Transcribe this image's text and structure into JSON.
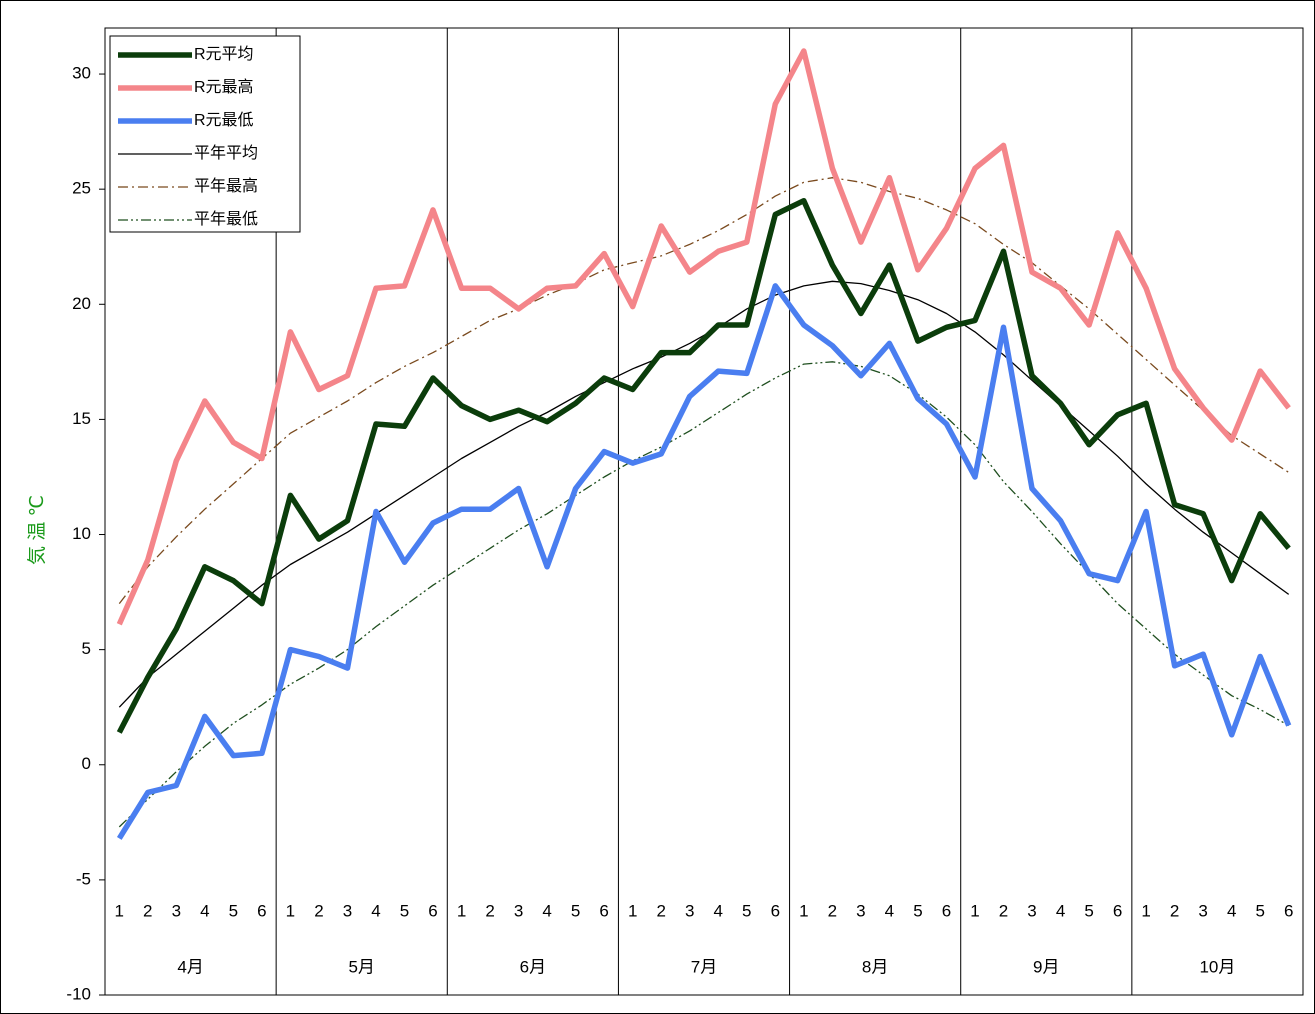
{
  "chart_data": {
    "type": "line",
    "y_label": "気 温 ℃",
    "categories": [
      "1",
      "2",
      "3",
      "4",
      "5",
      "6",
      "1",
      "2",
      "3",
      "4",
      "5",
      "6",
      "1",
      "2",
      "3",
      "4",
      "5",
      "6",
      "1",
      "2",
      "3",
      "4",
      "5",
      "6",
      "1",
      "2",
      "3",
      "4",
      "5",
      "6",
      "1",
      "2",
      "3",
      "4",
      "5",
      "6",
      "1",
      "2",
      "3",
      "4",
      "5",
      "6"
    ],
    "months": [
      "4月",
      "5月",
      "6月",
      "7月",
      "8月",
      "9月",
      "10月"
    ],
    "ylim": [
      -10,
      32
    ],
    "yticks": [
      -10,
      -5,
      0,
      5,
      10,
      15,
      20,
      25,
      30
    ],
    "legend": "top-left",
    "series": [
      {
        "name": "R元平均",
        "color": "#0b3d0b",
        "style": "bold",
        "values": [
          1.4,
          3.8,
          5.9,
          8.6,
          8.0,
          7.0,
          11.7,
          9.8,
          10.6,
          14.8,
          14.7,
          16.8,
          15.6,
          15.0,
          15.4,
          14.9,
          15.7,
          16.8,
          16.3,
          17.9,
          17.9,
          19.1,
          19.1,
          23.9,
          24.5,
          21.7,
          19.6,
          21.7,
          18.4,
          19.0,
          19.3,
          22.3,
          16.9,
          15.7,
          13.9,
          15.2,
          15.7,
          11.3,
          10.9,
          8.0,
          10.9,
          9.4
        ]
      },
      {
        "name": "R元最高",
        "color": "#f4858a",
        "style": "bold",
        "values": [
          6.1,
          8.9,
          13.2,
          15.8,
          14.0,
          13.3,
          18.8,
          16.3,
          16.9,
          20.7,
          20.8,
          24.1,
          20.7,
          20.7,
          19.8,
          20.7,
          20.8,
          22.2,
          19.9,
          23.4,
          21.4,
          22.3,
          22.7,
          28.7,
          31.0,
          25.9,
          22.7,
          25.5,
          21.5,
          23.3,
          25.9,
          26.9,
          21.4,
          20.7,
          19.1,
          23.1,
          20.7,
          17.2,
          15.5,
          14.1,
          17.1,
          15.5
        ]
      },
      {
        "name": "R元最低",
        "color": "#4a7ef0",
        "style": "bold",
        "values": [
          -3.2,
          -1.2,
          -0.9,
          2.1,
          0.4,
          0.5,
          5.0,
          4.7,
          4.2,
          11.0,
          8.8,
          10.5,
          11.1,
          11.1,
          12.0,
          8.6,
          12.0,
          13.6,
          13.1,
          13.5,
          16.0,
          17.1,
          17.0,
          20.8,
          19.1,
          18.2,
          16.9,
          18.3,
          15.9,
          14.8,
          12.5,
          19.0,
          12.0,
          10.6,
          8.3,
          8.0,
          11.0,
          4.3,
          4.8,
          1.3,
          4.7,
          1.7
        ]
      },
      {
        "name": "平年平均",
        "color": "#000000",
        "style": "thin",
        "values": [
          2.5,
          3.8,
          4.8,
          5.8,
          6.8,
          7.8,
          8.7,
          9.4,
          10.1,
          10.9,
          11.7,
          12.5,
          13.3,
          14.0,
          14.7,
          15.3,
          16.0,
          16.6,
          17.2,
          17.7,
          18.3,
          19.0,
          19.8,
          20.4,
          20.8,
          21.0,
          20.9,
          20.6,
          20.2,
          19.6,
          18.8,
          17.8,
          16.7,
          15.6,
          14.5,
          13.4,
          12.2,
          11.1,
          10.1,
          9.2,
          8.3,
          7.4
        ]
      },
      {
        "name": "平年最高",
        "color": "#7a4a1e",
        "style": "dashdot",
        "values": [
          7.0,
          8.6,
          9.9,
          11.1,
          12.2,
          13.3,
          14.4,
          15.1,
          15.8,
          16.6,
          17.3,
          17.9,
          18.6,
          19.3,
          19.8,
          20.4,
          20.9,
          21.5,
          21.8,
          22.1,
          22.6,
          23.2,
          23.9,
          24.7,
          25.3,
          25.5,
          25.3,
          24.9,
          24.6,
          24.1,
          23.5,
          22.6,
          21.8,
          20.8,
          19.8,
          18.7,
          17.6,
          16.5,
          15.4,
          14.3,
          13.5,
          12.7
        ]
      },
      {
        "name": "平年最低",
        "color": "#1f4f1f",
        "style": "dashdotdot",
        "values": [
          -2.7,
          -1.5,
          -0.3,
          0.8,
          1.8,
          2.6,
          3.5,
          4.2,
          5.0,
          6.0,
          6.9,
          7.8,
          8.6,
          9.4,
          10.2,
          10.9,
          11.7,
          12.5,
          13.2,
          13.8,
          14.5,
          15.3,
          16.1,
          16.8,
          17.4,
          17.5,
          17.3,
          16.9,
          16.1,
          15.1,
          13.9,
          12.3,
          11.0,
          9.6,
          8.3,
          7.0,
          5.9,
          4.8,
          3.9,
          3.0,
          2.4,
          1.7
        ]
      }
    ]
  }
}
